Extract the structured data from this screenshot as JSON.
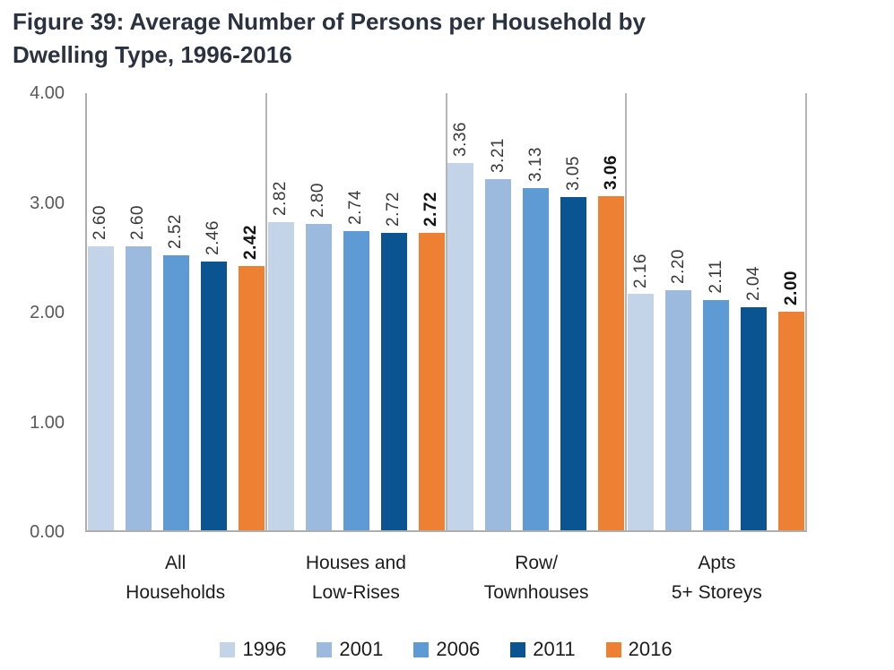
{
  "title_lines": [
    "Figure 39: Average Number of Persons per Household by",
    "Dwelling Type, 1996-2016"
  ],
  "chart_data": {
    "type": "bar",
    "title": "Figure 39: Average Number of Persons per Household by Dwelling Type, 1996-2016",
    "xlabel": "",
    "ylabel": "",
    "ylim": [
      0,
      4
    ],
    "yticks_top_to_bottom": [
      "4.00",
      "3.00",
      "2.00",
      "1.00",
      "0.00"
    ],
    "grid": false,
    "legend_position": "bottom",
    "value_labels": "rotated-90-above-bars, 2 decimals, 2016 series bold",
    "categories": [
      [
        "All",
        "Households"
      ],
      [
        "Houses and",
        "Low-Rises"
      ],
      [
        "Row/",
        "Townhouses"
      ],
      [
        "Apts",
        "5+ Storeys"
      ]
    ],
    "series": [
      {
        "name": "1996",
        "color": "#c3d4e8",
        "bold_labels": false,
        "values": [
          2.6,
          2.82,
          3.36,
          2.16
        ]
      },
      {
        "name": "2001",
        "color": "#9cbade",
        "bold_labels": false,
        "values": [
          2.6,
          2.8,
          3.21,
          2.2
        ]
      },
      {
        "name": "2006",
        "color": "#5e9ad3",
        "bold_labels": false,
        "values": [
          2.52,
          2.74,
          3.13,
          2.11
        ]
      },
      {
        "name": "2011",
        "color": "#0a5591",
        "bold_labels": false,
        "values": [
          2.46,
          2.72,
          3.05,
          2.04
        ]
      },
      {
        "name": "2016",
        "color": "#ed8032",
        "bold_labels": true,
        "values": [
          2.42,
          2.72,
          3.06,
          2.0
        ]
      }
    ],
    "colors": {
      "axis_line": "#aeaeae",
      "panel_separator": "#b5b5b5",
      "title_text": "#2a3240",
      "ytick_text": "#595959",
      "value_label_text": "#3a3a3a",
      "category_text": "#1c1c1c"
    }
  }
}
